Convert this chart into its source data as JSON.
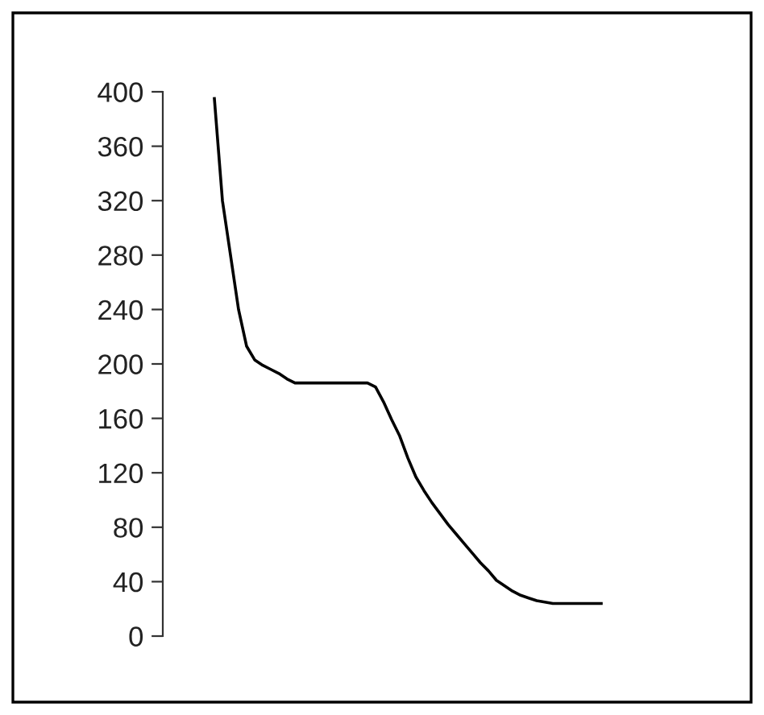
{
  "chart_data": {
    "type": "line",
    "categories": [
      null,
      null,
      null,
      null,
      null,
      null,
      null,
      null,
      null,
      null,
      null,
      null,
      null,
      null,
      null,
      null,
      null,
      null,
      null,
      null,
      null,
      null,
      null,
      null,
      null,
      null,
      null,
      null,
      null,
      null,
      null,
      null,
      null,
      null,
      null,
      null,
      null,
      null,
      null,
      null,
      null,
      null,
      null,
      null,
      null,
      null,
      null,
      null,
      null
    ],
    "series": [
      {
        "color": "#000000",
        "values": [
          395,
          320,
          280,
          240,
          213,
          203,
          199,
          196,
          193,
          189,
          186,
          186,
          186,
          186,
          186,
          186,
          186,
          186,
          186,
          186,
          183,
          172,
          159,
          147,
          131,
          117,
          107,
          98,
          90,
          82,
          75,
          68,
          61,
          54,
          48,
          41,
          37,
          33,
          30,
          28,
          26,
          25,
          24,
          24,
          24,
          24,
          24,
          24,
          24
        ]
      }
    ],
    "ylim": [
      0,
      400
    ],
    "yticks": [
      0,
      40,
      80,
      120,
      160,
      200,
      240,
      280,
      320,
      360,
      400
    ],
    "tick_labels": "y",
    "grid": false,
    "marker": "none",
    "line_style": "solid"
  }
}
